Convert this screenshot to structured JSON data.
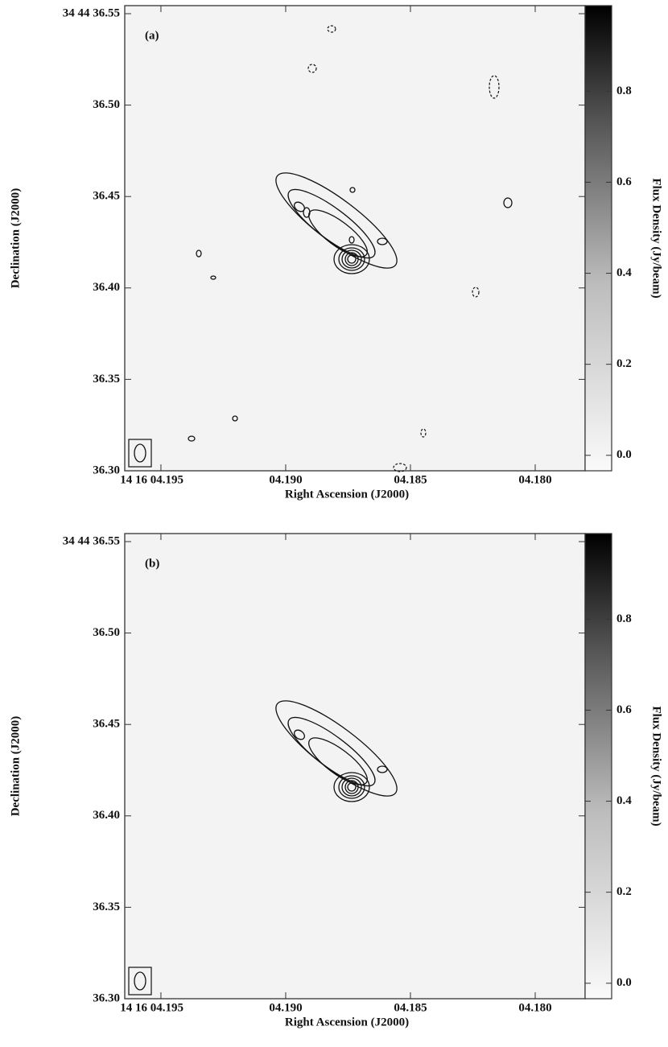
{
  "chart_data": [
    {
      "type": "image",
      "title": "(a)",
      "xlabel": "Right Ascension (J2000)",
      "ylabel": "Declination (J2000)",
      "xlim": [
        4.19645,
        4.178
      ],
      "ylim": [
        36.3,
        36.5544
      ],
      "xticks": [
        {
          "value": 4.195,
          "label": "14 16 04.195"
        },
        {
          "value": 4.19,
          "label": "04.190"
        },
        {
          "value": 4.185,
          "label": "04.185"
        },
        {
          "value": 4.18,
          "label": "04.180"
        }
      ],
      "yticks": [
        {
          "value": 36.55,
          "label": "34 44 36.55"
        },
        {
          "value": 36.5,
          "label": "36.50"
        },
        36.45,
        {
          "value": 36.4,
          "label": "36.40"
        },
        36.35,
        {
          "value": 36.3,
          "label": "36.30"
        }
      ],
      "colorbar": {
        "label": "Flux Density (Jy/beam)",
        "lim": [
          -0.034,
          0.988
        ],
        "ticks": [
          {
            "value": 0,
            "label": "0.0"
          },
          0.2,
          0.4,
          0.6,
          0.8
        ]
      }
    },
    {
      "type": "image",
      "title": "(b)",
      "xlabel": "Right Ascension (J2000)",
      "ylabel": "Declination (J2000)",
      "xlim": [
        4.19645,
        4.178
      ],
      "ylim": [
        36.3,
        36.5544
      ],
      "xticks": [
        {
          "value": 4.195,
          "label": "14 16 04.195"
        },
        {
          "value": 4.19,
          "label": "04.190"
        },
        {
          "value": 4.185,
          "label": "04.185"
        },
        {
          "value": 4.18,
          "label": "04.180"
        }
      ],
      "yticks": [
        {
          "value": 36.55,
          "label": "34 44 36.55"
        },
        {
          "value": 36.5,
          "label": "36.50"
        },
        36.45,
        {
          "value": 36.4,
          "label": "36.40"
        },
        36.35,
        {
          "value": 36.3,
          "label": "36.30"
        }
      ],
      "colorbar": {
        "label": "Flux Density (Jy/beam)",
        "lim": [
          -0.034,
          0.988
        ],
        "ticks": [
          {
            "value": 0,
            "label": "0.0"
          },
          0.2,
          0.4,
          0.6,
          0.8
        ]
      }
    }
  ]
}
